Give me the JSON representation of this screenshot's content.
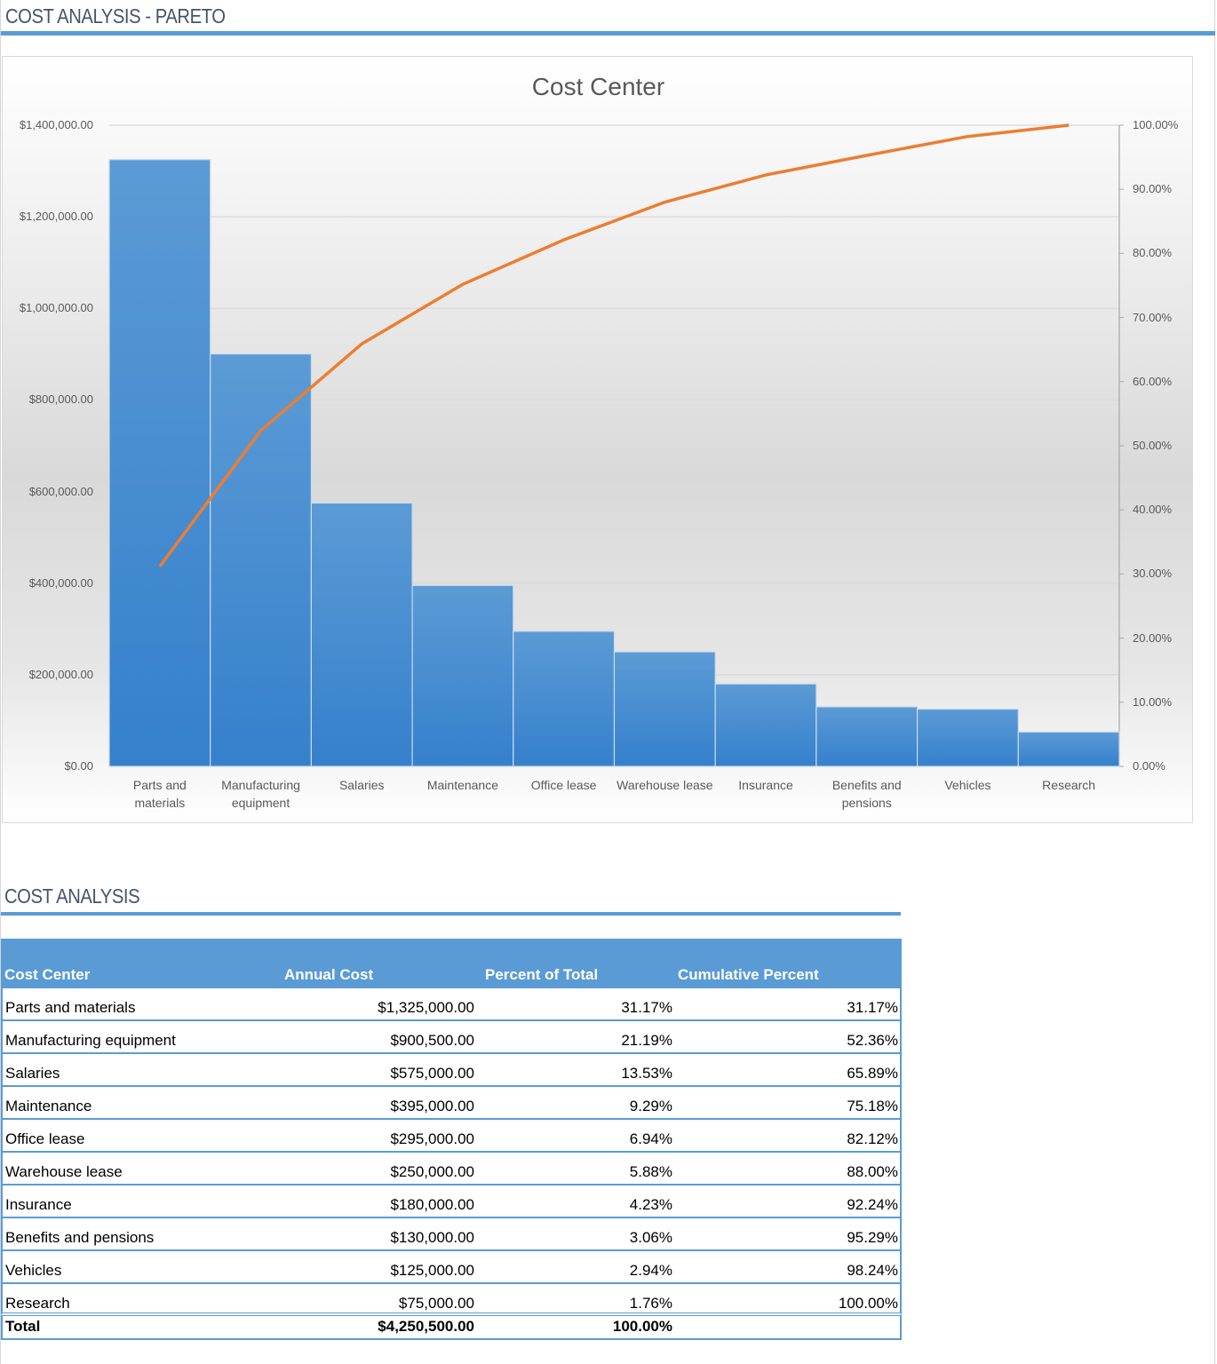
{
  "header": {
    "title": "COST ANALYSIS - PARETO"
  },
  "chart": {
    "title": "Cost Center",
    "left_axis_ticks": [
      "$1,400,000.00",
      "$1,200,000.00",
      "$1,000,000.00",
      "$800,000.00",
      "$600,000.00",
      "$400,000.00",
      "$200,000.00",
      "$0.00"
    ],
    "right_axis_ticks": [
      "100.00%",
      "90.00%",
      "80.00%",
      "70.00%",
      "60.00%",
      "50.00%",
      "40.00%",
      "30.00%",
      "20.00%",
      "10.00%",
      "0.00%"
    ],
    "x_labels": [
      [
        "Parts and",
        "materials"
      ],
      [
        "Manufacturing",
        "equipment"
      ],
      [
        "Salaries",
        ""
      ],
      [
        "Maintenance",
        ""
      ],
      [
        "Office lease",
        ""
      ],
      [
        "Warehouse lease",
        ""
      ],
      [
        "Insurance",
        ""
      ],
      [
        "Benefits and",
        "pensions"
      ],
      [
        "Vehicles",
        ""
      ],
      [
        "Research",
        ""
      ]
    ],
    "colors": {
      "bar_top": "#5b9bd5",
      "bar_bottom": "#3580cc",
      "line": "#ed7d31"
    }
  },
  "chart_data": {
    "type": "bar",
    "title": "Cost Center",
    "xlabel": "",
    "ylabel": "",
    "categories": [
      "Parts and materials",
      "Manufacturing equipment",
      "Salaries",
      "Maintenance",
      "Office lease",
      "Warehouse lease",
      "Insurance",
      "Benefits and pensions",
      "Vehicles",
      "Research"
    ],
    "series": [
      {
        "name": "Annual Cost",
        "type": "bar",
        "axis": "left",
        "values": [
          1325000,
          900500,
          575000,
          395000,
          295000,
          250000,
          180000,
          130000,
          125000,
          75000
        ]
      },
      {
        "name": "Cumulative Percent",
        "type": "line",
        "axis": "right",
        "values": [
          31.17,
          52.36,
          65.89,
          75.18,
          82.12,
          88.0,
          92.24,
          95.29,
          98.24,
          100.0
        ]
      }
    ],
    "ylim": [
      0,
      1400000
    ],
    "y2lim": [
      0,
      100
    ],
    "grid": true,
    "legend": "none"
  },
  "table": {
    "title": "COST ANALYSIS",
    "columns": [
      "Cost Center",
      "Annual Cost",
      "Percent of Total",
      "Cumulative Percent"
    ],
    "rows": [
      {
        "name": "Parts and materials",
        "cost": "$1,325,000.00",
        "pct": "31.17%",
        "cum": "31.17%"
      },
      {
        "name": "Manufacturing equipment",
        "cost": "$900,500.00",
        "pct": "21.19%",
        "cum": "52.36%"
      },
      {
        "name": "Salaries",
        "cost": "$575,000.00",
        "pct": "13.53%",
        "cum": "65.89%"
      },
      {
        "name": "Maintenance",
        "cost": "$395,000.00",
        "pct": "9.29%",
        "cum": "75.18%"
      },
      {
        "name": "Office lease",
        "cost": "$295,000.00",
        "pct": "6.94%",
        "cum": "82.12%"
      },
      {
        "name": "Warehouse lease",
        "cost": "$250,000.00",
        "pct": "5.88%",
        "cum": "88.00%"
      },
      {
        "name": "Insurance",
        "cost": "$180,000.00",
        "pct": "4.23%",
        "cum": "92.24%"
      },
      {
        "name": "Benefits and pensions",
        "cost": "$130,000.00",
        "pct": "3.06%",
        "cum": "95.29%"
      },
      {
        "name": "Vehicles",
        "cost": "$125,000.00",
        "pct": "2.94%",
        "cum": "98.24%"
      },
      {
        "name": "Research",
        "cost": "$75,000.00",
        "pct": "1.76%",
        "cum": "100.00%"
      }
    ],
    "total": {
      "name": "Total",
      "cost": "$4,250,500.00",
      "pct": "100.00%",
      "cum": ""
    }
  }
}
